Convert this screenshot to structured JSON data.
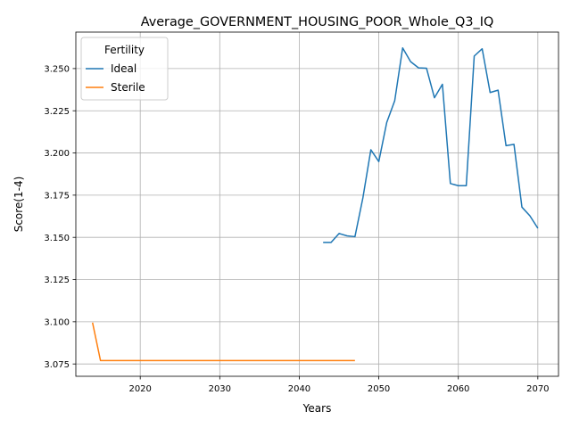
{
  "chart_data": {
    "type": "line",
    "title": "Average_GOVERNMENT_HOUSING_POOR_Whole_Q3_IQ",
    "xlabel": "Years",
    "ylabel": "Score(1-4)",
    "xlim": [
      2011.9,
      2072.6
    ],
    "ylim": [
      3.0677,
      3.2716
    ],
    "x_ticks": [
      2020,
      2030,
      2040,
      2050,
      2060,
      2070
    ],
    "y_ticks": [
      3.075,
      3.1,
      3.125,
      3.15,
      3.175,
      3.2,
      3.225,
      3.25
    ],
    "x_tick_labels": [
      "2020",
      "2030",
      "2040",
      "2050",
      "2060",
      "2070"
    ],
    "y_tick_labels": [
      "3.075",
      "3.100",
      "3.125",
      "3.150",
      "3.175",
      "3.200",
      "3.225",
      "3.250"
    ],
    "grid": true,
    "legend": {
      "title": "Fertility",
      "placement": "top-left"
    },
    "series": [
      {
        "name": "Ideal",
        "color": "#1f77b4",
        "x": [
          2043,
          2044,
          2045,
          2046,
          2047,
          2048,
          2049,
          2050,
          2051,
          2052,
          2053,
          2054,
          2055,
          2056,
          2057,
          2058,
          2059,
          2060,
          2061,
          2062,
          2063,
          2064,
          2065,
          2066,
          2067,
          2068,
          2069,
          2070
        ],
        "y": [
          3.147,
          3.147,
          3.1523,
          3.1509,
          3.1504,
          3.1734,
          3.2019,
          3.1949,
          3.2181,
          3.2309,
          3.2622,
          3.2541,
          3.2504,
          3.2502,
          3.2327,
          3.2407,
          3.1819,
          3.1806,
          3.1806,
          3.2574,
          3.2617,
          3.2358,
          3.2372,
          3.2043,
          3.2051,
          3.1679,
          3.1628,
          3.1554
        ]
      },
      {
        "name": "Sterile",
        "color": "#ff7f0e",
        "x": [
          2014,
          2015,
          2016,
          2017,
          2018,
          2019,
          2020,
          2021,
          2022,
          2023,
          2024,
          2025,
          2026,
          2027,
          2028,
          2029,
          2030,
          2031,
          2032,
          2033,
          2034,
          2035,
          2036,
          2037,
          2038,
          2039,
          2040,
          2041,
          2042,
          2043,
          2044,
          2045,
          2046,
          2047
        ],
        "y": [
          3.0995,
          3.077,
          3.077,
          3.077,
          3.077,
          3.077,
          3.077,
          3.077,
          3.077,
          3.077,
          3.077,
          3.077,
          3.077,
          3.077,
          3.077,
          3.077,
          3.077,
          3.077,
          3.077,
          3.077,
          3.077,
          3.077,
          3.077,
          3.077,
          3.077,
          3.077,
          3.077,
          3.077,
          3.077,
          3.077,
          3.077,
          3.077,
          3.077,
          3.077
        ]
      }
    ]
  }
}
